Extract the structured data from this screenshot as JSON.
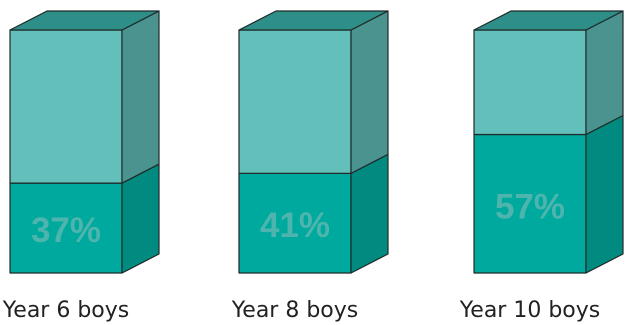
{
  "chart_data": {
    "type": "bar",
    "categories": [
      "Year 6 boys",
      "Year 8 boys",
      "Year 10 boys"
    ],
    "values": [
      37,
      41,
      57
    ],
    "data_labels": [
      "37%",
      "41%",
      "57%"
    ],
    "ylim": [
      0,
      100
    ],
    "stacked_remainder": true,
    "title": "",
    "xlabel": "",
    "ylabel": "",
    "grid": false,
    "legend": "none"
  },
  "colors": {
    "lower_front": "#00a99d",
    "lower_side": "#008a80",
    "upper_front": "#63bfb9",
    "upper_side": "#4a938f",
    "top": "#2d8f87",
    "label": "#4db5ad",
    "outline": "#1f2a29"
  }
}
